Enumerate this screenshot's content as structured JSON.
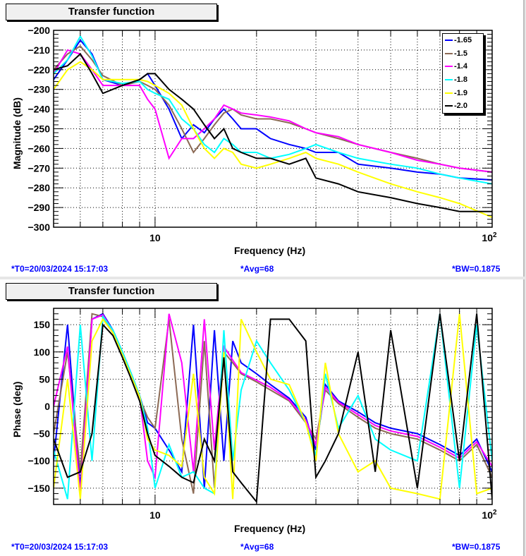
{
  "footer": {
    "t0": "*T0=20/03/2024 15:17:03",
    "avg": "*Avg=68",
    "bw": "*BW=0.1875"
  },
  "chart_data": [
    {
      "type": "line",
      "title": "Transfer function",
      "xlabel": "Frequency (Hz)",
      "ylabel": "Magnitude (dB)",
      "xscale": "log",
      "xlim": [
        5,
        100
      ],
      "ylim": [
        -300,
        -200
      ],
      "yticks": [
        -200,
        -210,
        -220,
        -230,
        -240,
        -250,
        -260,
        -270,
        -280,
        -290,
        -300
      ],
      "xtick_labels": [
        {
          "value": 10,
          "label": "10"
        },
        {
          "value": 100,
          "label": "10",
          "sup": "2"
        }
      ],
      "grid": true,
      "legend_placement": "top-right",
      "x": [
        5,
        5.5,
        6,
        6.5,
        7,
        8,
        9,
        9.5,
        10,
        11,
        12,
        13,
        14,
        15,
        16,
        17,
        18,
        20,
        22,
        25,
        28,
        30,
        35,
        40,
        50,
        60,
        70,
        80,
        100
      ],
      "series": [
        {
          "name": "-1.65",
          "color": "#0000ff",
          "values": [
            -225,
            -215,
            -205,
            -212,
            -225,
            -228,
            -225,
            -222,
            -228,
            -240,
            -255,
            -248,
            -252,
            -245,
            -240,
            -245,
            -250,
            -250,
            -255,
            -258,
            -260,
            -262,
            -262,
            -268,
            -270,
            -272,
            -273,
            -275,
            -276
          ]
        },
        {
          "name": "-1.5",
          "color": "#8c6a55",
          "values": [
            -220,
            -212,
            -208,
            -215,
            -223,
            -228,
            -226,
            -228,
            -230,
            -238,
            -250,
            -262,
            -255,
            -248,
            -242,
            -240,
            -243,
            -245,
            -245,
            -247,
            -250,
            -252,
            -255,
            -258,
            -262,
            -265,
            -268,
            -270,
            -272
          ]
        },
        {
          "name": "-1.4",
          "color": "#ff00ff",
          "values": [
            -222,
            -210,
            -212,
            -220,
            -228,
            -228,
            -228,
            -235,
            -240,
            -265,
            -255,
            -255,
            -250,
            -245,
            -238,
            -240,
            -242,
            -243,
            -244,
            -246,
            -250,
            -252,
            -254,
            -258,
            -262,
            -266,
            -268,
            -270,
            -272
          ]
        },
        {
          "name": "-1.8",
          "color": "#00ffff",
          "values": [
            -222,
            -215,
            -203,
            -213,
            -225,
            -227,
            -226,
            -230,
            -232,
            -235,
            -245,
            -250,
            -258,
            -262,
            -255,
            -258,
            -262,
            -262,
            -265,
            -263,
            -260,
            -258,
            -262,
            -265,
            -268,
            -270,
            -273,
            -275,
            -278
          ]
        },
        {
          "name": "-1.9",
          "color": "#ffff00",
          "values": [
            -230,
            -220,
            -216,
            -220,
            -225,
            -225,
            -225,
            -226,
            -228,
            -232,
            -238,
            -250,
            -260,
            -265,
            -260,
            -262,
            -268,
            -270,
            -268,
            -265,
            -262,
            -265,
            -268,
            -272,
            -278,
            -282,
            -285,
            -288,
            -295
          ]
        },
        {
          "name": "-2.0",
          "color": "#000000",
          "values": [
            -220,
            -218,
            -212,
            -222,
            -232,
            -228,
            -225,
            -222,
            -222,
            -230,
            -235,
            -240,
            -248,
            -255,
            -250,
            -260,
            -262,
            -265,
            -265,
            -268,
            -265,
            -275,
            -278,
            -282,
            -285,
            -288,
            -290,
            -292,
            -292
          ]
        }
      ]
    },
    {
      "type": "line",
      "title": "Transfer function",
      "xlabel": "Frequency (Hz)",
      "ylabel": "Phase (deg)",
      "xscale": "log",
      "xlim": [
        5,
        100
      ],
      "ylim": [
        -180,
        180
      ],
      "yticks": [
        150,
        100,
        50,
        0,
        -50,
        -100,
        -150
      ],
      "xtick_labels": [
        {
          "value": 10,
          "label": "10"
        },
        {
          "value": 100,
          "label": "10",
          "sup": "2"
        }
      ],
      "grid": true,
      "x": [
        5,
        5.5,
        6,
        6.5,
        7,
        7.5,
        8,
        8.5,
        9,
        9.5,
        10,
        11,
        12,
        13,
        14,
        15,
        16,
        17,
        18,
        20,
        22,
        25,
        28,
        30,
        32,
        35,
        40,
        45,
        50,
        60,
        70,
        80,
        90,
        100
      ],
      "series": [
        {
          "name": "-1.65",
          "color": "#0000ff",
          "values": [
            -100,
            150,
            -150,
            160,
            170,
            140,
            100,
            60,
            20,
            -30,
            -40,
            -80,
            -120,
            150,
            -150,
            140,
            -100,
            120,
            80,
            60,
            40,
            15,
            -20,
            -80,
            40,
            10,
            -10,
            -30,
            -40,
            -50,
            -70,
            -90,
            -60,
            -120
          ]
        },
        {
          "name": "-1.5",
          "color": "#8c6a55",
          "values": [
            -50,
            100,
            -120,
            170,
            165,
            135,
            95,
            55,
            15,
            -20,
            -40,
            160,
            -60,
            -160,
            120,
            -150,
            100,
            80,
            60,
            45,
            30,
            10,
            -30,
            -60,
            30,
            5,
            -20,
            -40,
            -50,
            -60,
            -80,
            -100,
            -70,
            -130
          ]
        },
        {
          "name": "-1.4",
          "color": "#ff00ff",
          "values": [
            0,
            110,
            -160,
            160,
            168,
            138,
            98,
            58,
            18,
            -100,
            -130,
            170,
            80,
            -120,
            160,
            -80,
            110,
            85,
            62,
            48,
            35,
            12,
            -25,
            -70,
            35,
            8,
            -15,
            -35,
            -45,
            -55,
            -75,
            -95,
            -65,
            -110
          ]
        },
        {
          "name": "-1.8",
          "color": "#00ffff",
          "values": [
            -80,
            -170,
            150,
            -100,
            165,
            140,
            100,
            60,
            20,
            -40,
            -150,
            -70,
            -130,
            -120,
            -150,
            -160,
            140,
            -100,
            30,
            120,
            80,
            30,
            -30,
            -90,
            60,
            -40,
            20,
            -60,
            -80,
            -100,
            170,
            -150,
            150,
            -100
          ]
        },
        {
          "name": "-1.9",
          "color": "#ffff00",
          "values": [
            -150,
            50,
            -170,
            120,
            160,
            135,
            95,
            55,
            18,
            -60,
            -80,
            -90,
            -110,
            60,
            -130,
            -160,
            100,
            -170,
            160,
            100,
            50,
            40,
            -30,
            -100,
            80,
            -50,
            -120,
            -100,
            -150,
            -160,
            -170,
            170,
            -160,
            -150
          ]
        },
        {
          "name": "-2.0",
          "color": "#000000",
          "values": [
            -60,
            -130,
            -120,
            -50,
            150,
            130,
            90,
            50,
            10,
            -50,
            -90,
            -110,
            -130,
            -140,
            -60,
            -100,
            90,
            -120,
            -140,
            -175,
            160,
            160,
            120,
            -130,
            -100,
            -50,
            100,
            -120,
            140,
            -150,
            170,
            -100,
            170,
            -170
          ]
        }
      ]
    }
  ]
}
